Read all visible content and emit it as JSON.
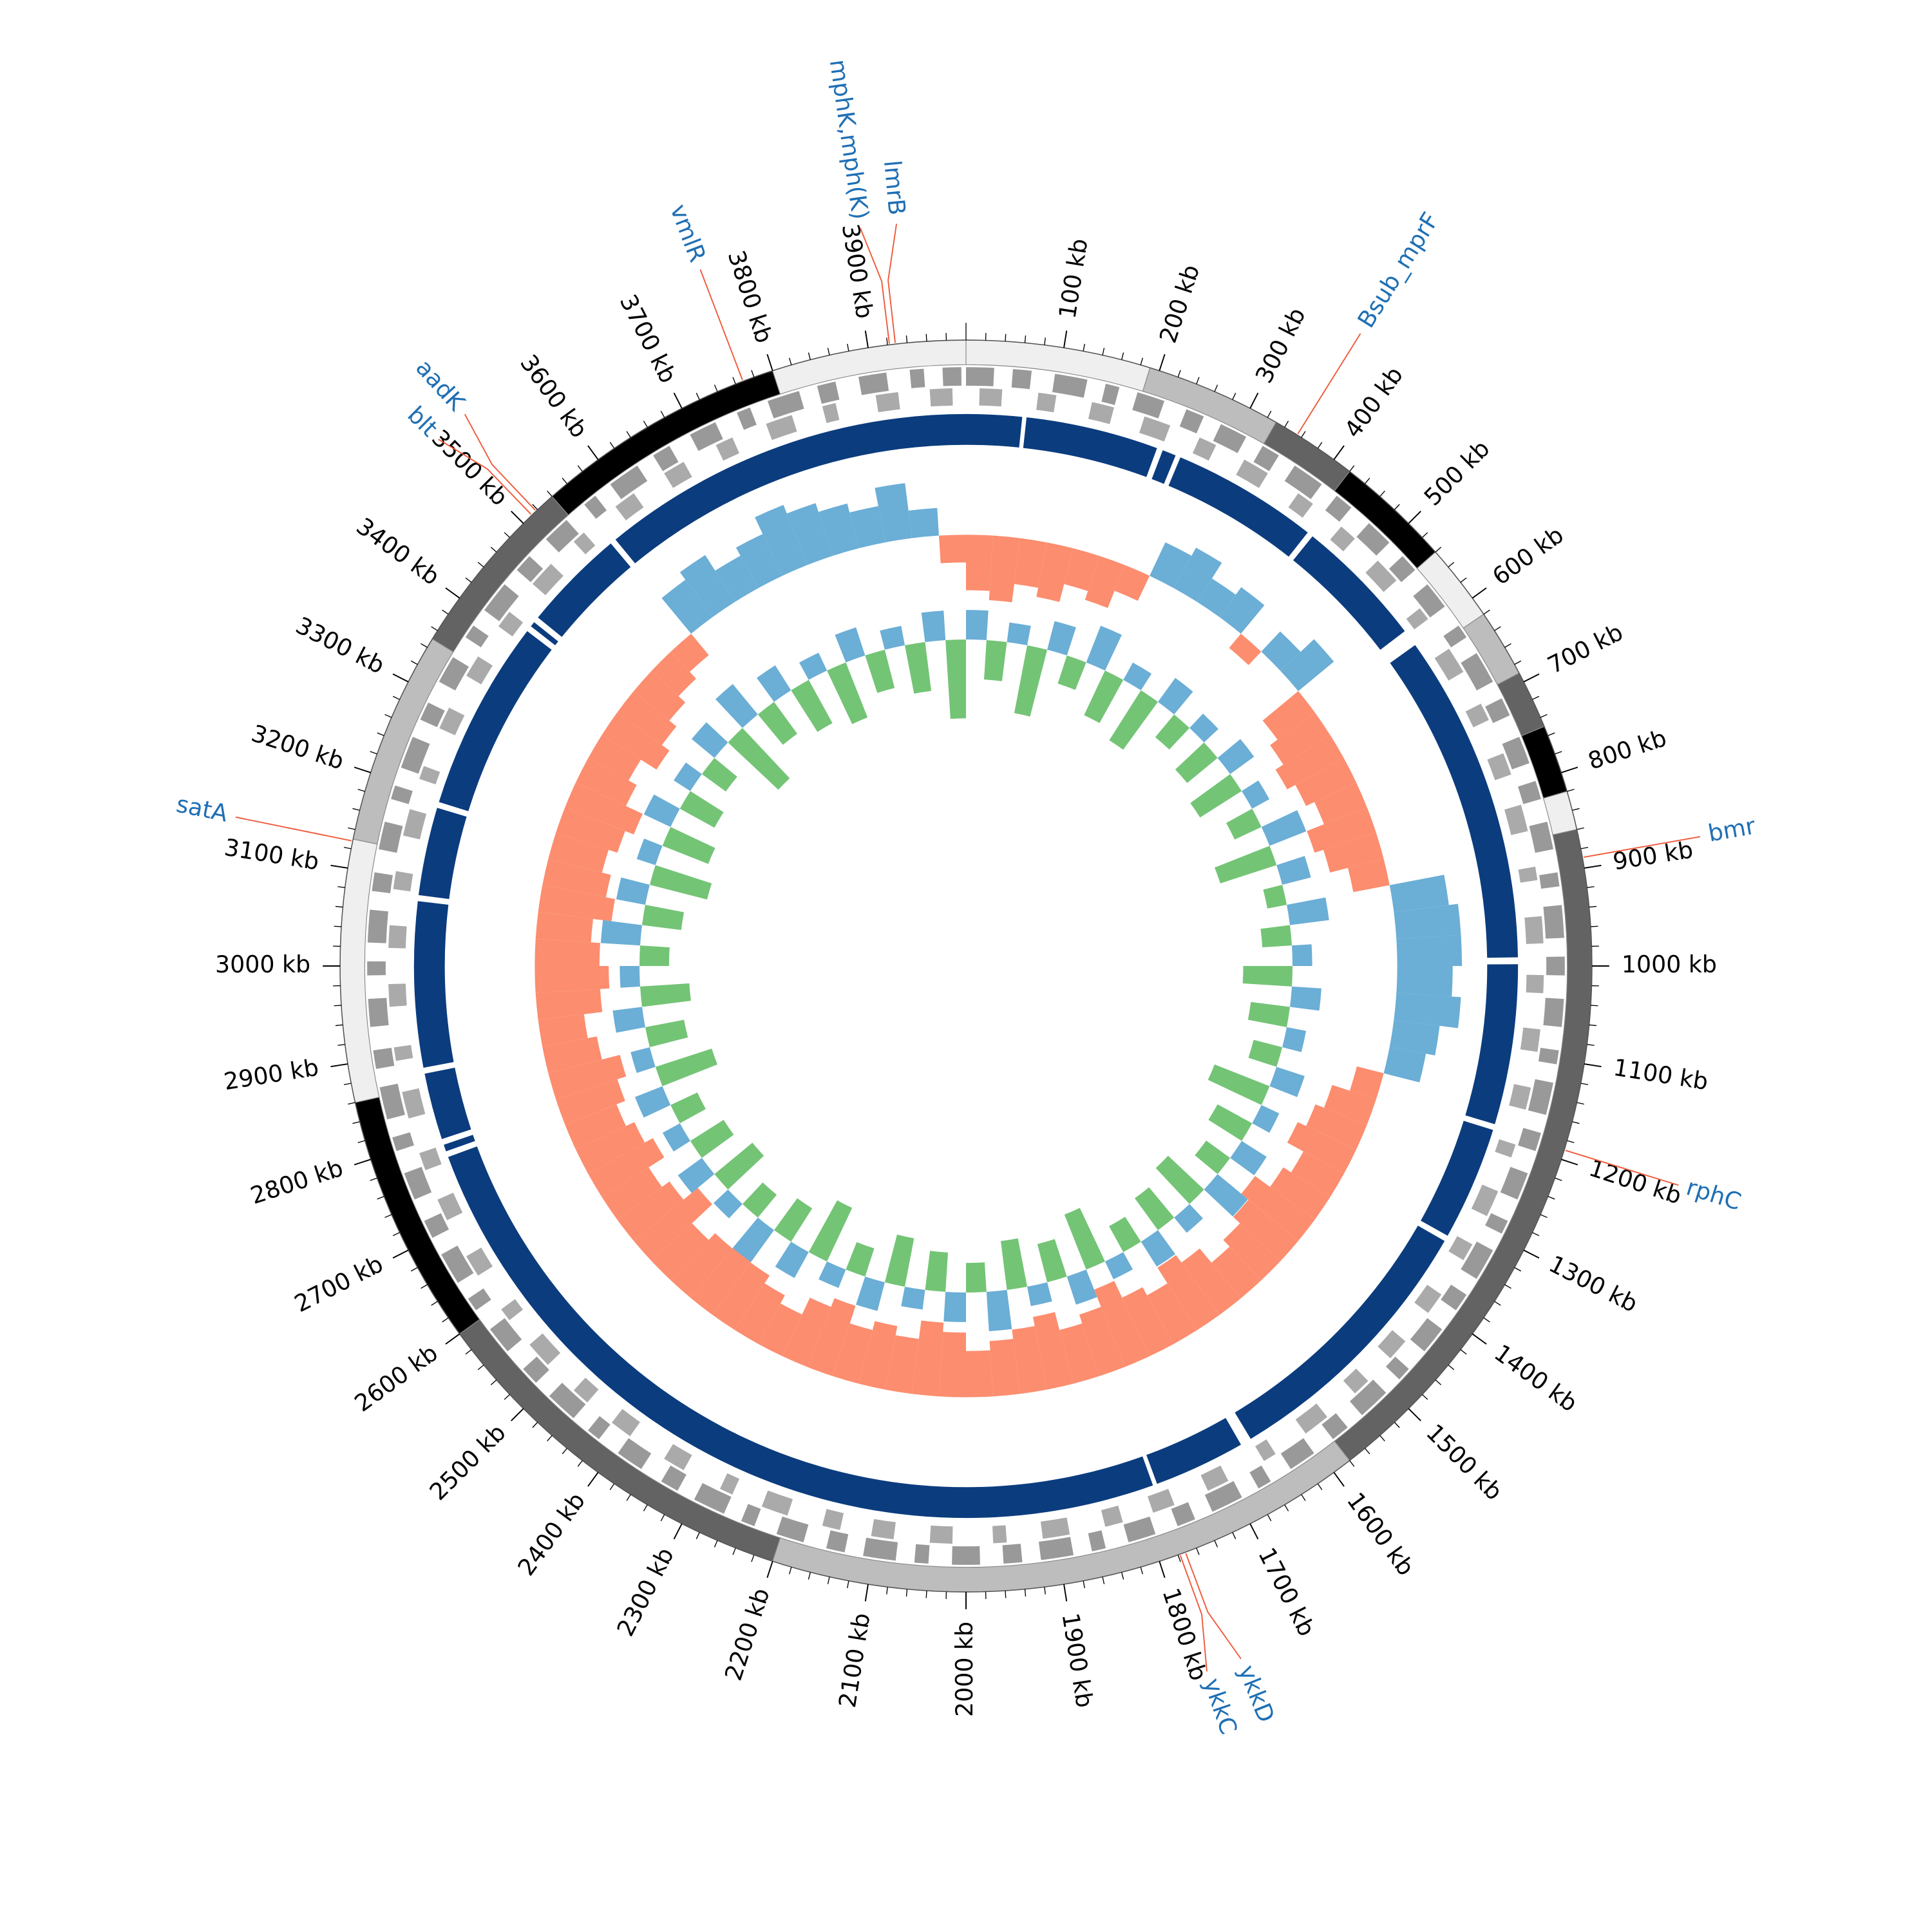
{
  "chart_data": {
    "type": "circular-genome",
    "xlim": [
      0,
      4000
    ],
    "xticks": [
      {
        "value": 100,
        "label": "100 kb"
      },
      {
        "value": 200,
        "label": "200 kb"
      },
      {
        "value": 300,
        "label": "300 kb"
      },
      {
        "value": 400,
        "label": "400 kb"
      },
      {
        "value": 500,
        "label": "500 kb"
      },
      {
        "value": 600,
        "label": "600 kb"
      },
      {
        "value": 700,
        "label": "700 kb"
      },
      {
        "value": 800,
        "label": "800 kb"
      },
      {
        "value": 900,
        "label": "900 kb"
      },
      {
        "value": 1000,
        "label": "1000 kb"
      },
      {
        "value": 1100,
        "label": "1100 kb"
      },
      {
        "value": 1200,
        "label": "1200 kb"
      },
      {
        "value": 1300,
        "label": "1300 kb"
      },
      {
        "value": 1400,
        "label": "1400 kb"
      },
      {
        "value": 1500,
        "label": "1500 kb"
      },
      {
        "value": 1600,
        "label": "1600 kb"
      },
      {
        "value": 1700,
        "label": "1700 kb"
      },
      {
        "value": 1800,
        "label": "1800 kb"
      },
      {
        "value": 1900,
        "label": "1900 kb"
      },
      {
        "value": 2000,
        "label": "2000 kb"
      },
      {
        "value": 2100,
        "label": "2100 kb"
      },
      {
        "value": 2200,
        "label": "2200 kb"
      },
      {
        "value": 2300,
        "label": "2300 kb"
      },
      {
        "value": 2400,
        "label": "2400 kb"
      },
      {
        "value": 2500,
        "label": "2500 kb"
      },
      {
        "value": 2600,
        "label": "2600 kb"
      },
      {
        "value": 2700,
        "label": "2700 kb"
      },
      {
        "value": 2800,
        "label": "2800 kb"
      },
      {
        "value": 2900,
        "label": "2900 kb"
      },
      {
        "value": 3000,
        "label": "3000 kb"
      },
      {
        "value": 3100,
        "label": "3100 kb"
      },
      {
        "value": 3200,
        "label": "3200 kb"
      },
      {
        "value": 3300,
        "label": "3300 kb"
      },
      {
        "value": 3400,
        "label": "3400 kb"
      },
      {
        "value": 3500,
        "label": "3500 kb"
      },
      {
        "value": 3600,
        "label": "3600 kb"
      },
      {
        "value": 3700,
        "label": "3700 kb"
      },
      {
        "value": 3800,
        "label": "3800 kb"
      },
      {
        "value": 3900,
        "label": "3900 kb"
      }
    ],
    "minor_tick_interval": 20,
    "contigs": [
      {
        "start": 0,
        "end": 190,
        "color": "#efefef"
      },
      {
        "start": 190,
        "end": 330,
        "color": "#bdbdbd"
      },
      {
        "start": 330,
        "end": 420,
        "color": "#636363"
      },
      {
        "start": 420,
        "end": 540,
        "color": "#000000"
      },
      {
        "start": 540,
        "end": 620,
        "color": "#efefef"
      },
      {
        "start": 620,
        "end": 690,
        "color": "#bdbdbd"
      },
      {
        "start": 690,
        "end": 750,
        "color": "#636363"
      },
      {
        "start": 750,
        "end": 820,
        "color": "#000000"
      },
      {
        "start": 820,
        "end": 860,
        "color": "#efefef"
      },
      {
        "start": 860,
        "end": 1580,
        "color": "#636363"
      },
      {
        "start": 1580,
        "end": 2200,
        "color": "#bdbdbd"
      },
      {
        "start": 2200,
        "end": 2600,
        "color": "#636363"
      },
      {
        "start": 2600,
        "end": 2860,
        "color": "#000000"
      },
      {
        "start": 2860,
        "end": 3130,
        "color": "#efefef"
      },
      {
        "start": 3130,
        "end": 3350,
        "color": "#bdbdbd"
      },
      {
        "start": 3350,
        "end": 3540,
        "color": "#636363"
      },
      {
        "start": 3540,
        "end": 3800,
        "color": "#000000"
      },
      {
        "start": 3800,
        "end": 4000,
        "color": "#efefef"
      }
    ],
    "genes_forward": {
      "color": "#999999",
      "ranges": [
        [
          0,
          30
        ],
        [
          50,
          70
        ],
        [
          95,
          130
        ],
        [
          150,
          165
        ],
        [
          185,
          215
        ],
        [
          240,
          260
        ],
        [
          280,
          310
        ],
        [
          330,
          350
        ],
        [
          370,
          405
        ],
        [
          425,
          445
        ],
        [
          470,
          500
        ],
        [
          520,
          540
        ],
        [
          560,
          590
        ],
        [
          615,
          630
        ],
        [
          650,
          685
        ],
        [
          705,
          725
        ],
        [
          750,
          780
        ],
        [
          800,
          820
        ],
        [
          845,
          875
        ],
        [
          900,
          915
        ],
        [
          935,
          970
        ],
        [
          990,
          1010
        ],
        [
          1035,
          1065
        ],
        [
          1090,
          1105
        ],
        [
          1125,
          1160
        ],
        [
          1180,
          1200
        ],
        [
          1225,
          1255
        ],
        [
          1280,
          1295
        ],
        [
          1315,
          1350
        ],
        [
          1370,
          1390
        ],
        [
          1415,
          1445
        ],
        [
          1470,
          1485
        ],
        [
          1505,
          1540
        ],
        [
          1560,
          1580
        ],
        [
          1605,
          1635
        ],
        [
          1660,
          1675
        ],
        [
          1695,
          1730
        ],
        [
          1750,
          1770
        ],
        [
          1795,
          1825
        ],
        [
          1850,
          1865
        ],
        [
          1885,
          1920
        ],
        [
          1940,
          1960
        ],
        [
          1985,
          2015
        ],
        [
          2040,
          2055
        ],
        [
          2075,
          2110
        ],
        [
          2130,
          2150
        ],
        [
          2175,
          2205
        ],
        [
          2230,
          2245
        ],
        [
          2265,
          2300
        ],
        [
          2320,
          2340
        ],
        [
          2365,
          2395
        ],
        [
          2420,
          2435
        ],
        [
          2455,
          2490
        ],
        [
          2510,
          2530
        ],
        [
          2555,
          2585
        ],
        [
          2610,
          2625
        ],
        [
          2645,
          2680
        ],
        [
          2700,
          2720
        ],
        [
          2745,
          2775
        ],
        [
          2800,
          2815
        ],
        [
          2835,
          2870
        ],
        [
          2890,
          2910
        ],
        [
          2935,
          2965
        ],
        [
          2990,
          3005
        ],
        [
          3025,
          3060
        ],
        [
          3080,
          3100
        ],
        [
          3125,
          3155
        ],
        [
          3180,
          3195
        ],
        [
          3215,
          3250
        ],
        [
          3270,
          3290
        ],
        [
          3315,
          3345
        ],
        [
          3370,
          3385
        ],
        [
          3405,
          3440
        ],
        [
          3460,
          3480
        ],
        [
          3505,
          3535
        ],
        [
          3560,
          3575
        ],
        [
          3595,
          3630
        ],
        [
          3650,
          3670
        ],
        [
          3695,
          3725
        ],
        [
          3750,
          3765
        ],
        [
          3785,
          3820
        ],
        [
          3840,
          3860
        ],
        [
          3885,
          3915
        ],
        [
          3940,
          3955
        ],
        [
          3975,
          3995
        ]
      ]
    },
    "genes_reverse": {
      "color": "#aaaaaa",
      "ranges": [
        [
          15,
          40
        ],
        [
          80,
          100
        ],
        [
          140,
          165
        ],
        [
          200,
          230
        ],
        [
          265,
          285
        ],
        [
          320,
          350
        ],
        [
          390,
          410
        ],
        [
          450,
          470
        ],
        [
          505,
          535
        ],
        [
          575,
          590
        ],
        [
          630,
          660
        ],
        [
          700,
          720
        ],
        [
          760,
          785
        ],
        [
          820,
          850
        ],
        [
          890,
          905
        ],
        [
          945,
          975
        ],
        [
          1010,
          1030
        ],
        [
          1070,
          1095
        ],
        [
          1135,
          1160
        ],
        [
          1200,
          1215
        ],
        [
          1255,
          1285
        ],
        [
          1320,
          1340
        ],
        [
          1385,
          1410
        ],
        [
          1450,
          1475
        ],
        [
          1510,
          1530
        ],
        [
          1570,
          1600
        ],
        [
          1640,
          1655
        ],
        [
          1700,
          1725
        ],
        [
          1765,
          1790
        ],
        [
          1825,
          1845
        ],
        [
          1885,
          1915
        ],
        [
          1955,
          1970
        ],
        [
          2015,
          2040
        ],
        [
          2080,
          2105
        ],
        [
          2140,
          2160
        ],
        [
          2200,
          2230
        ],
        [
          2265,
          2280
        ],
        [
          2325,
          2350
        ],
        [
          2395,
          2420
        ],
        [
          2455,
          2475
        ],
        [
          2515,
          2545
        ],
        [
          2580,
          2595
        ],
        [
          2640,
          2665
        ],
        [
          2710,
          2735
        ],
        [
          2770,
          2790
        ],
        [
          2830,
          2860
        ],
        [
          2895,
          2910
        ],
        [
          2955,
          2980
        ],
        [
          3020,
          3045
        ],
        [
          3085,
          3105
        ],
        [
          3145,
          3175
        ],
        [
          3210,
          3225
        ],
        [
          3270,
          3295
        ],
        [
          3335,
          3360
        ],
        [
          3400,
          3420
        ],
        [
          3460,
          3490
        ],
        [
          3525,
          3540
        ],
        [
          3585,
          3610
        ],
        [
          3650,
          3675
        ],
        [
          3715,
          3735
        ],
        [
          3775,
          3805
        ],
        [
          3840,
          3855
        ],
        [
          3900,
          3925
        ],
        [
          3960,
          3985
        ]
      ]
    },
    "blocks": {
      "color": "#0b3c7e",
      "ranges": [
        [
          0,
          65
        ],
        [
          70,
          225
        ],
        [
          232,
          248
        ],
        [
          254,
          425
        ],
        [
          432,
          585
        ],
        [
          605,
          990
        ],
        [
          998,
          1185
        ],
        [
          1192,
          1325
        ],
        [
          1332,
          1655
        ],
        [
          1668,
          1775
        ],
        [
          1780,
          2775
        ],
        [
          2782,
          2790
        ],
        [
          2797,
          2875
        ],
        [
          2882,
          3075
        ],
        [
          3082,
          3185
        ],
        [
          3192,
          3415
        ],
        [
          3422,
          3428
        ],
        [
          3435,
          3555
        ],
        [
          3562,
          4000
        ]
      ]
    },
    "gc_skew": {
      "bin_width": 40,
      "ylim": [
        -1,
        1
      ],
      "pos_color": "#6baed6",
      "neg_color": "#fc8d6f",
      "values": [
        -0.6,
        -0.7,
        -0.5,
        -0.6,
        -0.4,
        -0.5,
        -0.3,
        0.4,
        0.5,
        0.3,
        0.4,
        -0.2,
        0.3,
        0.5,
        -0.5,
        -0.6,
        -0.7,
        -0.6,
        -0.5,
        -0.7,
        -0.6,
        -0.4,
        0.6,
        0.7,
        0.7,
        0.6,
        0.7,
        0.5,
        0.4,
        -0.3,
        -0.5,
        -0.6,
        -0.7,
        -0.5,
        -0.6,
        -0.8,
        -0.7,
        -0.6,
        -0.5,
        -0.7,
        -0.8,
        -0.6,
        -0.7,
        -0.9,
        -0.7,
        -0.6,
        -0.8,
        -0.7,
        -0.6,
        -0.5,
        -0.7,
        -0.8,
        -0.6,
        -0.7,
        -0.6,
        -0.8,
        -0.7,
        -0.5,
        -0.6,
        -0.7,
        -0.8,
        -0.7,
        -0.6,
        -0.9,
        -0.7,
        -0.6,
        -0.8,
        -0.7,
        -0.6,
        -0.7,
        -0.8,
        -0.6,
        -0.5,
        -0.7,
        -0.8,
        -0.7,
        -0.6,
        -0.8,
        -0.7,
        -0.6,
        -0.7,
        -0.8,
        -0.6,
        -0.5,
        -0.7,
        -0.6,
        -0.5,
        -0.4,
        -0.3,
        0.5,
        0.6,
        0.4,
        0.5,
        0.7,
        0.6,
        0.5,
        0.4,
        0.6,
        0.3,
        -0.3
      ]
    },
    "gc_content": {
      "bin_width": 40,
      "ylim": [
        -1,
        1
      ],
      "pos_color": "#6baed6",
      "neg_color": "#74c476",
      "values": [
        0.3,
        -0.4,
        0.2,
        -0.7,
        0.3,
        -0.3,
        0.4,
        -0.5,
        0.2,
        -0.6,
        0.3,
        -0.3,
        0.2,
        -0.4,
        0.3,
        -0.5,
        0.2,
        -0.3,
        0.4,
        -0.6,
        0.3,
        -0.2,
        0.4,
        -0.3,
        0.2,
        -0.5,
        0.3,
        -0.4,
        0.2,
        -0.3,
        0.3,
        -0.6,
        0.2,
        -0.4,
        0.3,
        -0.3,
        0.4,
        -0.5,
        0.2,
        -0.4,
        0.3,
        -0.3,
        0.2,
        -0.6,
        0.3,
        -0.4,
        0.2,
        -0.5,
        0.4,
        -0.3,
        0.3,
        -0.4,
        0.2,
        -0.5,
        0.3,
        -0.3,
        0.2,
        -0.6,
        0.3,
        -0.4,
        0.4,
        -0.3,
        0.2,
        -0.5,
        0.3,
        -0.4,
        0.2,
        -0.3,
        0.3,
        -0.6,
        0.2,
        -0.4,
        0.3,
        -0.5,
        0.2,
        -0.3,
        0.4,
        -0.4,
        0.3,
        -0.6,
        0.2,
        -0.5,
        0.3,
        -0.4,
        0.2,
        -0.3,
        0.3,
        -0.7,
        0.4,
        -0.4,
        0.3,
        -0.5,
        0.2,
        -0.6,
        0.3,
        -0.4,
        0.2,
        -0.5,
        0.3,
        -0.8
      ]
    },
    "annotation_color": "#1f6fb4",
    "leader_color": "#ef5a3c",
    "annotations": [
      {
        "label": "Bsub_mprF",
        "position": 355
      },
      {
        "label": "bmr",
        "position": 889
      },
      {
        "label": "rphC",
        "position": 1190
      },
      {
        "label": "ykkD",
        "position": 1772
      },
      {
        "label": "ykkC",
        "position": 1778
      },
      {
        "label": "satA",
        "position": 3128
      },
      {
        "label": "blt",
        "position": 3512
      },
      {
        "label": "aadK",
        "position": 3518
      },
      {
        "label": "vmlR",
        "position": 3768
      },
      {
        "label": "mphK,mph(K)",
        "position": 3922
      },
      {
        "label": "lmrB",
        "position": 3928
      }
    ]
  }
}
